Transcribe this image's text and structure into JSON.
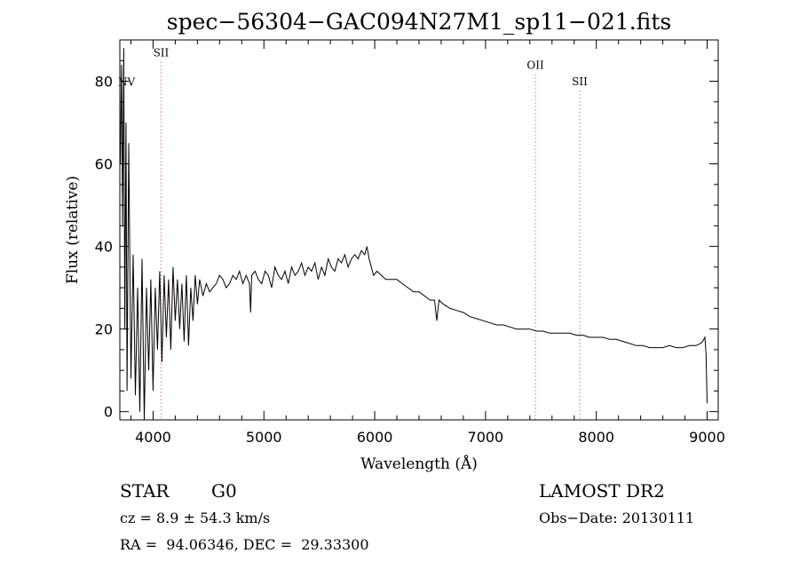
{
  "chart_data": {
    "type": "line",
    "title": "spec−56304−GAC094N27M1_sp11−021.fits",
    "xlabel": "Wavelength (Å)",
    "ylabel": "Flux (relative)",
    "xlim": [
      3700,
      9100
    ],
    "ylim": [
      -2,
      90
    ],
    "x_ticks": [
      4000,
      5000,
      6000,
      7000,
      8000,
      9000
    ],
    "y_ticks": [
      0,
      20,
      40,
      60,
      80
    ],
    "grid": false,
    "legend": "none",
    "line_color": "#000000",
    "marker_color": "#cc3333",
    "emission_lines": [
      {
        "label": "SII",
        "wavelength": 4072,
        "label_flux": 86
      },
      {
        "label": "OII",
        "wavelength": 7450,
        "label_flux": 83
      },
      {
        "label": "SII",
        "wavelength": 7850,
        "label_flux": 79
      }
    ],
    "edge_label": {
      "text": "NV",
      "flux": 80
    },
    "series": [
      {
        "x": [
          3705,
          3715,
          3725,
          3735,
          3745,
          3755,
          3765,
          3780,
          3800,
          3820,
          3840,
          3860,
          3880,
          3900,
          3920,
          3940,
          3960,
          3980,
          4000,
          4020,
          4040,
          4060,
          4080,
          4100,
          4120,
          4140,
          4160,
          4180,
          4200,
          4220,
          4240,
          4260,
          4280,
          4300,
          4320,
          4340,
          4360,
          4380,
          4400,
          4420,
          4450,
          4480,
          4510,
          4540,
          4570,
          4600,
          4630,
          4660,
          4690,
          4720,
          4750,
          4780,
          4810,
          4840,
          4870,
          4880,
          4890,
          4920,
          4950,
          4980,
          5010,
          5040,
          5070,
          5100,
          5130,
          5160,
          5190,
          5220,
          5250,
          5280,
          5310,
          5340,
          5370,
          5400,
          5430,
          5460,
          5490,
          5520,
          5550,
          5580,
          5610,
          5640,
          5670,
          5700,
          5730,
          5760,
          5790,
          5820,
          5850,
          5880,
          5910,
          5930,
          5950,
          5970,
          5990,
          6020,
          6060,
          6100,
          6150,
          6200,
          6250,
          6300,
          6350,
          6400,
          6450,
          6500,
          6540,
          6560,
          6580,
          6620,
          6680,
          6740,
          6800,
          6860,
          6920,
          6980,
          7040,
          7100,
          7160,
          7220,
          7280,
          7340,
          7400,
          7460,
          7520,
          7580,
          7640,
          7700,
          7760,
          7820,
          7880,
          7940,
          8000,
          8060,
          8120,
          8180,
          8240,
          8300,
          8360,
          8420,
          8480,
          8540,
          8600,
          8660,
          8720,
          8780,
          8840,
          8900,
          8940,
          8960,
          8980,
          8990,
          9000
        ],
        "y": [
          60,
          84,
          45,
          88,
          20,
          70,
          5,
          65,
          8,
          38,
          4,
          30,
          0,
          37,
          -2,
          30,
          10,
          32,
          5,
          30,
          15,
          34,
          12,
          33,
          18,
          32,
          15,
          35,
          22,
          32,
          20,
          31,
          17,
          33,
          16,
          30,
          22,
          33,
          26,
          32,
          28,
          31,
          29,
          30,
          31,
          33,
          32,
          30,
          31,
          33,
          32,
          34,
          31,
          33,
          31,
          24,
          33,
          34,
          32,
          31,
          34,
          33,
          30,
          35,
          33,
          32,
          34,
          31,
          35,
          33,
          34,
          36,
          33,
          35,
          34,
          36,
          32,
          35,
          33,
          37,
          35,
          34,
          37,
          36,
          38,
          35,
          37,
          38,
          37,
          39,
          38,
          40,
          37,
          35,
          33,
          34,
          33,
          32,
          32,
          32,
          31,
          30,
          29,
          29,
          28,
          27,
          27,
          22,
          27,
          26,
          25,
          24.5,
          24,
          23,
          22.5,
          22,
          21.5,
          21,
          21,
          20.5,
          20,
          20,
          20,
          19.5,
          19.5,
          19,
          19,
          19,
          19,
          18.5,
          18.5,
          18,
          18,
          18,
          17.5,
          17.5,
          17,
          16.5,
          16,
          16,
          15.5,
          15.5,
          15.5,
          16,
          15.5,
          15.5,
          16,
          16,
          16.5,
          17,
          18,
          14,
          2
        ]
      }
    ]
  },
  "info": {
    "object_type": "STAR",
    "subclass": "G0",
    "survey": "LAMOST DR2",
    "cz": "cz = 8.9 ± 54.3 km/s",
    "obs_date": "Obs−Date: 20130111",
    "coords": "RA =  94.06346, DEC =  29.33300"
  }
}
